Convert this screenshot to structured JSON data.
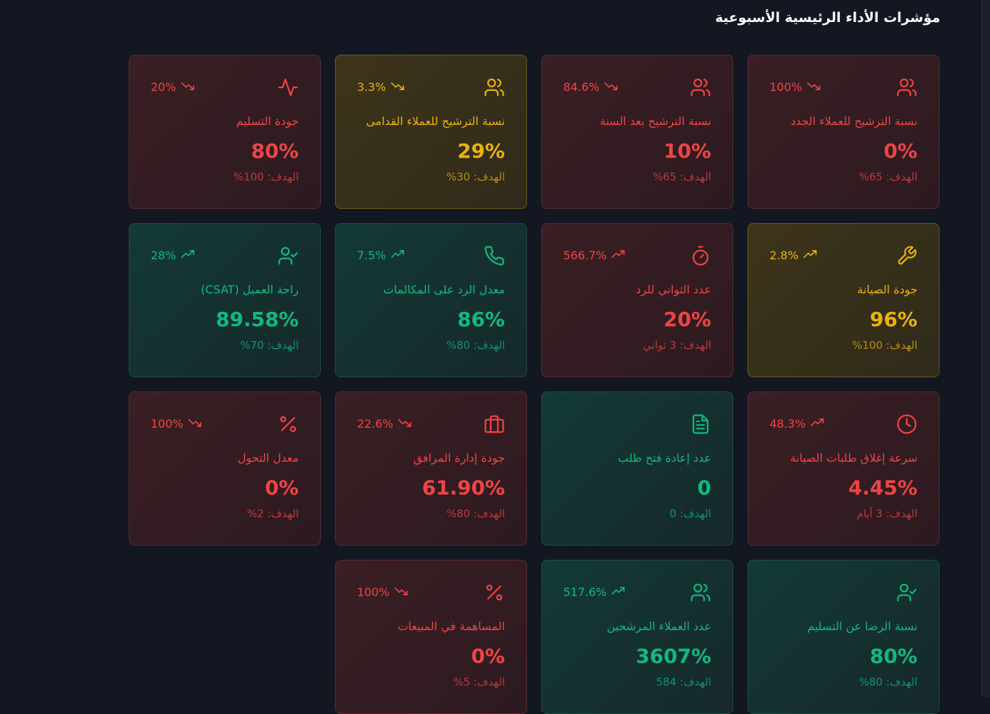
{
  "page": {
    "title": "مؤشرات الأداء الرئيسية الأسبوعية"
  },
  "target_prefix": "الهدف:",
  "cards": [
    {
      "label": "نسبة الترشيح للعملاء الجدد",
      "value": "0%",
      "target": "%65",
      "trend": "100%",
      "trend_dir": "down",
      "status": "red",
      "icon": "users-icon"
    },
    {
      "label": "نسبة الترشيح بعد السنة",
      "value": "10%",
      "target": "%65",
      "trend": "84.6%",
      "trend_dir": "down",
      "status": "red",
      "icon": "users-icon"
    },
    {
      "label": "نسبة الترشيح للعملاء القدامى",
      "value": "29%",
      "target": "%30",
      "trend": "3.3%",
      "trend_dir": "down",
      "status": "yellow",
      "icon": "users-icon"
    },
    {
      "label": "جودة التسليم",
      "value": "80%",
      "target": "%100",
      "trend": "20%",
      "trend_dir": "down",
      "status": "red",
      "icon": "activity-icon"
    },
    {
      "label": "جودة الصيانة",
      "value": "96%",
      "target": "%100",
      "trend": "2.8%",
      "trend_dir": "up",
      "status": "yellow",
      "icon": "wrench-icon"
    },
    {
      "label": "عدد الثواني للرد",
      "value": "20%",
      "target": "3 ثواني",
      "trend": "566.7%",
      "trend_dir": "up",
      "status": "red",
      "icon": "timer-icon"
    },
    {
      "label": "معدل الرد على المكالمات",
      "value": "86%",
      "target": "%80",
      "trend": "7.5%",
      "trend_dir": "up",
      "status": "green",
      "icon": "phone-icon"
    },
    {
      "label": "راحة العميل (CSAT)",
      "value": "89.58%",
      "target": "%70",
      "trend": "28%",
      "trend_dir": "up",
      "status": "green",
      "icon": "user-check-icon"
    },
    {
      "label": "سرعة إغلاق طلبات الصيانة",
      "value": "4.45%",
      "target": "3 أيام",
      "trend": "48.3%",
      "trend_dir": "up",
      "status": "red",
      "icon": "clock-icon"
    },
    {
      "label": "عدد إعادة فتح طلب",
      "value": "0",
      "target": "0",
      "trend": "",
      "trend_dir": "none",
      "status": "green",
      "icon": "file-text-icon"
    },
    {
      "label": "جودة إدارة المرافق",
      "value": "61.90%",
      "target": "%80",
      "trend": "22.6%",
      "trend_dir": "down",
      "status": "red",
      "icon": "briefcase-icon"
    },
    {
      "label": "معدل التحول",
      "value": "0%",
      "target": "%2",
      "trend": "100%",
      "trend_dir": "down",
      "status": "red",
      "icon": "percent-icon"
    },
    {
      "label": "نسبة الرضا عن التسليم",
      "value": "80%",
      "target": "%80",
      "trend": "",
      "trend_dir": "none",
      "status": "green",
      "icon": "user-check-icon"
    },
    {
      "label": "عدد العملاء المرشحين",
      "value": "3607%",
      "target": "584",
      "trend": "517.6%",
      "trend_dir": "up",
      "status": "green",
      "icon": "users-icon"
    },
    {
      "label": "المساهمة في المبيعات",
      "value": "0%",
      "target": "%5",
      "trend": "100%",
      "trend_dir": "down",
      "status": "red",
      "icon": "percent-icon"
    }
  ]
}
